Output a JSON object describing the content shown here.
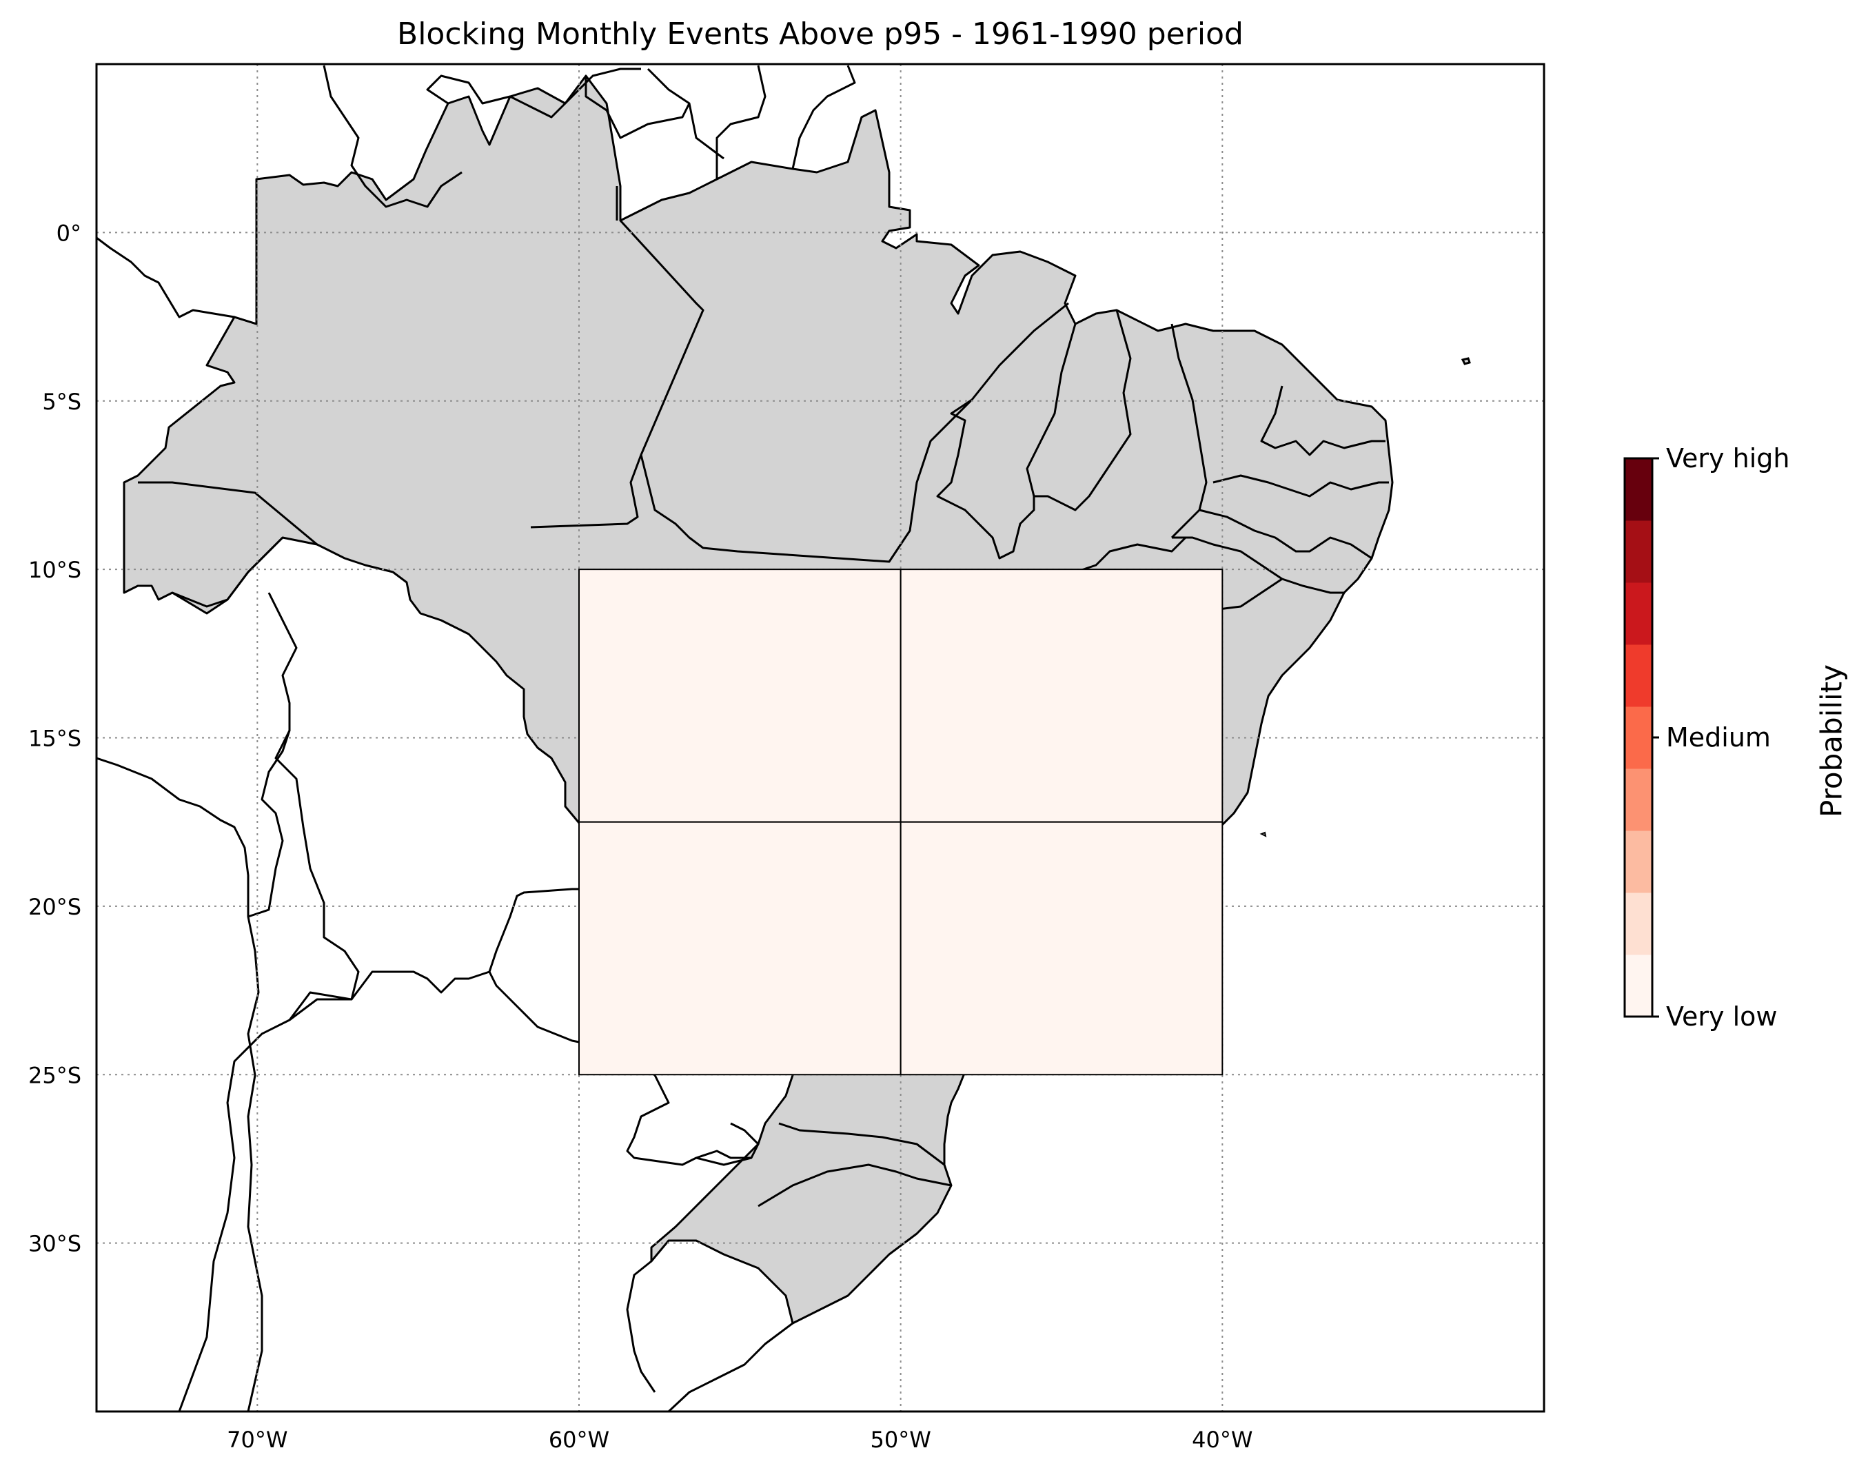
{
  "title": "Blocking Monthly Events Above p95 - 1961-1990 period",
  "map": {
    "lon_range": [
      -75,
      -30
    ],
    "lat_range": [
      -35,
      5
    ],
    "land_color": "#d3d3d3",
    "ocean_color": "#ffffff",
    "gridlines": "dotted gray",
    "lon_ticks": [
      {
        "value": -70,
        "label": "70°W"
      },
      {
        "value": -60,
        "label": "60°W"
      },
      {
        "value": -50,
        "label": "50°W"
      },
      {
        "value": -40,
        "label": "40°W"
      }
    ],
    "lat_ticks": [
      {
        "value": 0,
        "label": "0°"
      },
      {
        "value": -5,
        "label": "5°S"
      },
      {
        "value": -10,
        "label": "10°S"
      },
      {
        "value": -15,
        "label": "15°S"
      },
      {
        "value": -20,
        "label": "20°S"
      },
      {
        "value": -25,
        "label": "25°S"
      },
      {
        "value": -30,
        "label": "30°S"
      }
    ]
  },
  "chart_data": {
    "type": "heatmap",
    "title": "Blocking Monthly Events Above p95 - 1961-1990 period",
    "cells": [
      {
        "lon": [
          -60,
          -50
        ],
        "lat": [
          -17.5,
          -10
        ],
        "level": "Very low",
        "color": "#fff5f0"
      },
      {
        "lon": [
          -50,
          -40
        ],
        "lat": [
          -17.5,
          -10
        ],
        "level": "Very low",
        "color": "#fff5f0"
      },
      {
        "lon": [
          -60,
          -50
        ],
        "lat": [
          -25,
          -17.5
        ],
        "level": "Very low",
        "color": "#fff5f0"
      },
      {
        "lon": [
          -50,
          -40
        ],
        "lat": [
          -25,
          -17.5
        ],
        "level": "Very low",
        "color": "#fff5f0"
      }
    ]
  },
  "colorbar": {
    "label": "Probability",
    "tick_labels": [
      "Very low",
      "Medium",
      "Very high"
    ],
    "colors": [
      "#fff5f0",
      "#fee0d2",
      "#fcbba1",
      "#fc9272",
      "#fb6a4a",
      "#ef3b2c",
      "#cb181d",
      "#a50f15",
      "#67000d"
    ]
  }
}
